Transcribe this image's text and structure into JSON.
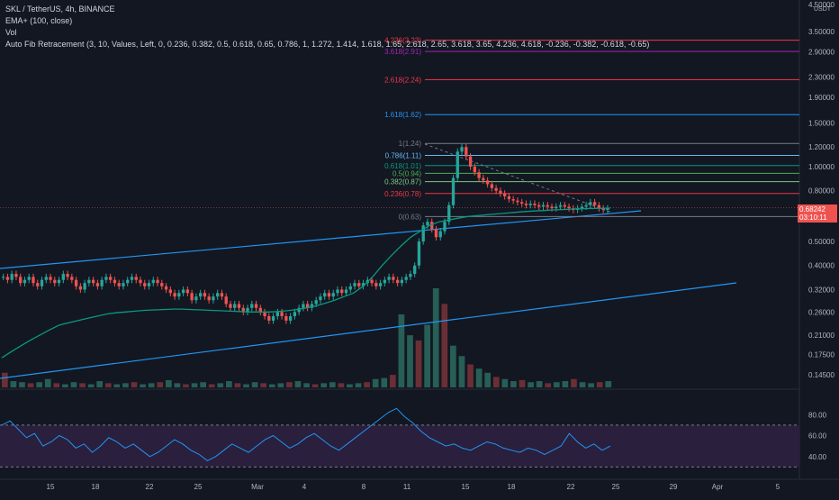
{
  "header": {
    "symbol_line": "SKL / TetherUS, 4h, BINANCE",
    "indicator_ema": "EMA+ (100, close)",
    "indicator_vol": "Vol",
    "indicator_fib": "Auto Fib Retracement (3, 10, Values, Left, 0, 0.236, 0.382, 0.5, 0.618, 0.65, 0.786, 1, 1.272, 1.414, 1.618, 1.65, 2.618, 2.65, 3.618, 3.65, 4.236, 4.618, -0.236, -0.382, -0.618, -0.65)"
  },
  "axis": {
    "currency": "USDT",
    "price_ticks": [
      "4.50000",
      "3.50000",
      "2.90000",
      "2.30000",
      "1.90000",
      "1.50000",
      "1.20000",
      "1.00000",
      "0.80000",
      "0.50000",
      "0.40000",
      "0.32000",
      "0.26000",
      "0.21000",
      "0.17500",
      "0.14500"
    ],
    "price_tick_values": [
      4.5,
      3.5,
      2.9,
      2.3,
      1.9,
      1.5,
      1.2,
      1.0,
      0.8,
      0.5,
      0.4,
      0.32,
      0.26,
      0.21,
      0.175,
      0.145
    ],
    "rsi_ticks": [
      "80.00",
      "60.00",
      "40.00"
    ],
    "rsi_tick_values": [
      80,
      60,
      40
    ],
    "time_ticks": [
      "15",
      "18",
      "22",
      "25",
      "Mar",
      "4",
      "8",
      "11",
      "15",
      "18",
      "22",
      "25",
      "29",
      "Apr",
      "5"
    ],
    "current_price": "0.68242",
    "countdown": "03:10:11",
    "price_tag_color": "#ef5350"
  },
  "chart_data": {
    "type": "candlestick",
    "symbol": "SKL / TetherUS",
    "interval": "4h",
    "exchange": "BINANCE",
    "last_price": 0.68242,
    "ylim": [
      0.135,
      4.6
    ],
    "y_scale": "log",
    "fib_levels": [
      {
        "label": "4.236(3.23)",
        "ratio": 4.236,
        "price": 3.23,
        "color": "#f23645"
      },
      {
        "label": "3.618(2.91)",
        "ratio": 3.618,
        "price": 2.91,
        "color": "#9c27b0"
      },
      {
        "label": "2.618(2.24)",
        "ratio": 2.618,
        "price": 2.24,
        "color": "#f23645"
      },
      {
        "label": "1.618(1.62)",
        "ratio": 1.618,
        "price": 1.62,
        "color": "#2196f3"
      },
      {
        "label": "1(1.24)",
        "ratio": 1,
        "price": 1.24,
        "color": "#787b86"
      },
      {
        "label": "0.786(1.11)",
        "ratio": 0.786,
        "price": 1.11,
        "color": "#64b5f6"
      },
      {
        "label": "0.618(1.01)",
        "ratio": 0.618,
        "price": 1.01,
        "color": "#089981"
      },
      {
        "label": "0.5(0.94)",
        "ratio": 0.5,
        "price": 0.94,
        "color": "#4caf50"
      },
      {
        "label": "0.382(0.87)",
        "ratio": 0.382,
        "price": 0.87,
        "color": "#81c784"
      },
      {
        "label": "0.236(0.78)",
        "ratio": 0.236,
        "price": 0.78,
        "color": "#f23645"
      },
      {
        "label": "0(0.63)",
        "ratio": 0,
        "price": 0.63,
        "color": "#787b86"
      }
    ],
    "price_path": [
      0.36,
      0.35,
      0.37,
      0.36,
      0.34,
      0.35,
      0.36,
      0.34,
      0.33,
      0.35,
      0.36,
      0.35,
      0.34,
      0.35,
      0.37,
      0.36,
      0.35,
      0.33,
      0.32,
      0.34,
      0.35,
      0.34,
      0.33,
      0.35,
      0.36,
      0.35,
      0.34,
      0.33,
      0.34,
      0.35,
      0.36,
      0.35,
      0.34,
      0.33,
      0.34,
      0.35,
      0.34,
      0.33,
      0.32,
      0.31,
      0.3,
      0.31,
      0.32,
      0.31,
      0.29,
      0.3,
      0.31,
      0.3,
      0.29,
      0.3,
      0.31,
      0.3,
      0.28,
      0.27,
      0.28,
      0.27,
      0.26,
      0.27,
      0.28,
      0.27,
      0.26,
      0.25,
      0.24,
      0.25,
      0.26,
      0.25,
      0.24,
      0.25,
      0.26,
      0.27,
      0.28,
      0.27,
      0.28,
      0.29,
      0.3,
      0.31,
      0.3,
      0.31,
      0.32,
      0.31,
      0.32,
      0.33,
      0.34,
      0.33,
      0.34,
      0.35,
      0.34,
      0.33,
      0.34,
      0.35,
      0.36,
      0.35,
      0.34,
      0.35,
      0.36,
      0.37,
      0.4,
      0.5,
      0.58,
      0.6,
      0.56,
      0.52,
      0.55,
      0.6,
      0.7,
      0.9,
      1.15,
      1.2,
      1.1,
      1.0,
      0.95,
      0.9,
      0.88,
      0.85,
      0.82,
      0.8,
      0.78,
      0.76,
      0.74,
      0.73,
      0.72,
      0.71,
      0.7,
      0.71,
      0.7,
      0.69,
      0.7,
      0.69,
      0.68,
      0.69,
      0.7,
      0.69,
      0.68,
      0.67,
      0.68,
      0.69,
      0.7,
      0.72,
      0.7,
      0.68,
      0.67,
      0.68
    ],
    "ema_path": [
      0.17,
      0.18,
      0.19,
      0.2,
      0.21,
      0.22,
      0.23,
      0.235,
      0.24,
      0.245,
      0.25,
      0.255,
      0.258,
      0.26,
      0.262,
      0.264,
      0.265,
      0.266,
      0.267,
      0.267,
      0.266,
      0.265,
      0.264,
      0.263,
      0.262,
      0.261,
      0.26,
      0.26,
      0.26,
      0.261,
      0.263,
      0.266,
      0.27,
      0.275,
      0.282,
      0.29,
      0.3,
      0.31,
      0.33,
      0.36,
      0.4,
      0.44,
      0.48,
      0.52,
      0.55,
      0.58,
      0.6,
      0.61,
      0.62,
      0.63,
      0.635,
      0.64,
      0.645,
      0.65,
      0.655,
      0.66,
      0.663,
      0.666,
      0.67,
      0.672,
      0.675,
      0.677,
      0.679,
      0.68,
      0.681
    ],
    "rsi_path": [
      70,
      74,
      66,
      58,
      62,
      50,
      54,
      60,
      56,
      48,
      52,
      44,
      50,
      58,
      54,
      48,
      52,
      46,
      40,
      44,
      50,
      56,
      52,
      46,
      42,
      36,
      40,
      46,
      52,
      48,
      44,
      50,
      56,
      60,
      54,
      48,
      52,
      58,
      62,
      56,
      50,
      46,
      52,
      58,
      64,
      70,
      76,
      82,
      86,
      78,
      72,
      64,
      58,
      54,
      50,
      52,
      48,
      46,
      50,
      54,
      52,
      48,
      46,
      44,
      48,
      46,
      42,
      46,
      50,
      62,
      54,
      48,
      52,
      46,
      50
    ],
    "rsi_ylim": [
      20,
      100
    ],
    "volume_path": [
      14,
      6,
      5,
      4,
      5,
      8,
      4,
      3,
      5,
      4,
      3,
      6,
      4,
      3,
      4,
      5,
      3,
      4,
      5,
      7,
      4,
      3,
      4,
      5,
      3,
      4,
      6,
      4,
      3,
      5,
      4,
      3,
      4,
      5,
      6,
      4,
      3,
      4,
      5,
      4,
      3,
      4,
      5,
      8,
      9,
      12,
      70,
      50,
      45,
      60,
      95,
      80,
      40,
      30,
      22,
      18,
      14,
      10,
      8,
      6,
      7,
      5,
      6,
      4,
      5,
      6,
      8,
      5,
      4,
      5,
      6
    ],
    "time_labels": [
      "15",
      "18",
      "22",
      "25",
      "Mar",
      "4",
      "8",
      "11",
      "15",
      "18",
      "22",
      "25",
      "29",
      "Apr",
      "5"
    ]
  }
}
